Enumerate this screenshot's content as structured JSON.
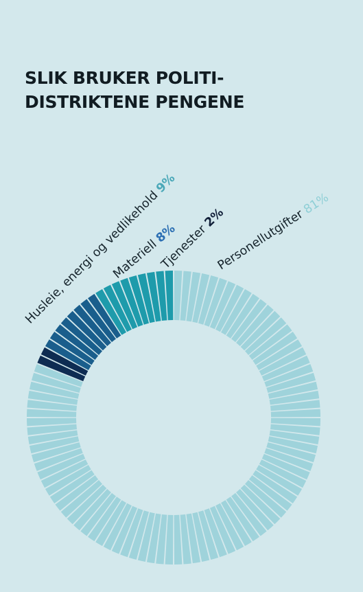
{
  "title": {
    "line1": "SLIK BRUKER POLITI-",
    "line2": "DISTRIKTENE PENGENE"
  },
  "chart_data": {
    "type": "pie",
    "title": "SLIK BRUKER POLITI- DISTRIKTENE PENGENE",
    "slices": [
      {
        "name": "Personellutgifter",
        "value": 81,
        "label": "81%",
        "color": "#9fd3db"
      },
      {
        "name": "Tjenester",
        "value": 2,
        "label": "2%",
        "color": "#0e2c52"
      },
      {
        "name": "Materiell",
        "value": 8,
        "label": "8%",
        "color": "#1a5e8c"
      },
      {
        "name": "Husleie, energi og vedlikehold",
        "value": 9,
        "label": "9%",
        "color": "#1e9bab"
      }
    ]
  },
  "colors": {
    "background": "#d3e8ec",
    "text": "#15232b",
    "label_pct_personell": "#8fcfd6",
    "label_pct_tjenester": "#12203a",
    "label_pct_materiell": "#2c6fb3",
    "label_pct_husleie": "#4aa8b8"
  }
}
